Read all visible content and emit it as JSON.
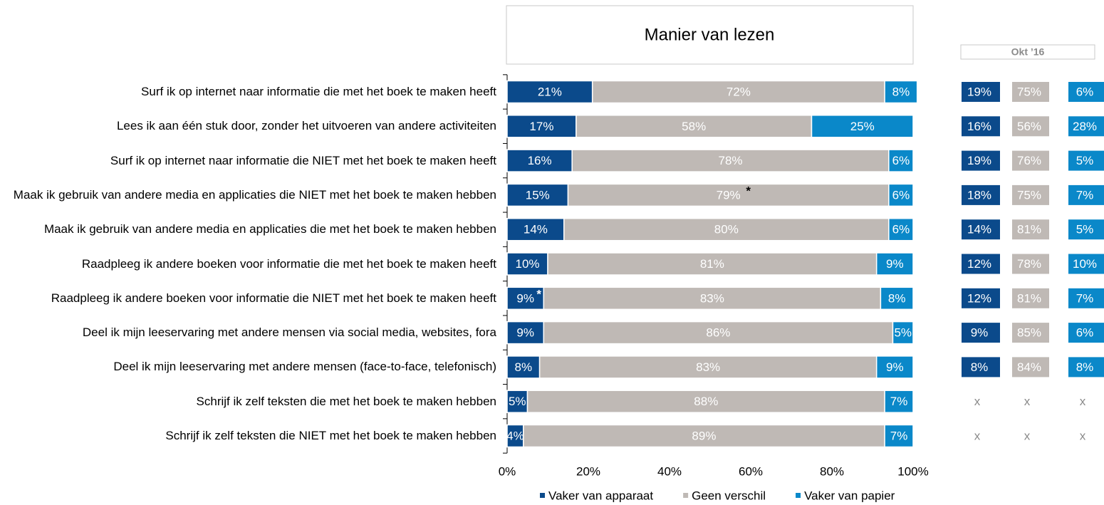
{
  "chart_data": {
    "type": "bar",
    "orientation": "horizontal",
    "stacked": true,
    "title": "Manier van lezen",
    "categories": [
      "Surf ik op internet naar informatie die met het boek te maken heeft",
      "Lees ik aan één stuk door, zonder het uitvoeren van andere activiteiten",
      "Surf ik op internet naar informatie die NIET met het boek te maken heeft",
      "Maak ik gebruik van andere media en applicaties die NIET met het boek te maken hebben",
      "Maak ik gebruik van andere media en applicaties die met het boek te maken hebben",
      "Raadpleeg ik andere boeken voor informatie die met het boek te maken heeft",
      "Raadpleeg ik andere boeken voor informatie die NIET met het boek te maken heeft",
      "Deel ik mijn leeservaring met andere mensen via social media, websites, fora",
      "Deel ik mijn leeservaring met andere mensen (face-to-face, telefonisch)",
      "Schrijf ik zelf teksten die met het boek te maken hebben",
      "Schrijf ik zelf teksten die NIET met het boek te maken hebben"
    ],
    "series": [
      {
        "name": "Vaker van apparaat",
        "color": "#0b4a8b",
        "values": [
          21,
          17,
          16,
          15,
          14,
          10,
          9,
          9,
          8,
          5,
          4
        ],
        "value_labels": [
          "21%",
          "17%",
          "16%",
          "15%",
          "14%",
          "10%",
          "9%",
          "9%",
          "8%",
          "5%",
          "4%"
        ]
      },
      {
        "name": "Geen verschil",
        "color": "#bfb9b5",
        "values": [
          72,
          58,
          78,
          79,
          80,
          81,
          83,
          86,
          83,
          88,
          89
        ],
        "value_labels": [
          "72%",
          "58%",
          "78%",
          "79%",
          "80%",
          "81%",
          "83%",
          "86%",
          "83%",
          "88%",
          "89%"
        ]
      },
      {
        "name": "Vaker van papier",
        "color": "#0a88c9",
        "values": [
          8,
          25,
          6,
          6,
          6,
          9,
          8,
          5,
          9,
          7,
          7
        ],
        "value_labels": [
          "8%",
          "25%",
          "6%",
          "6%",
          "6%",
          "9%",
          "8%",
          "5%",
          "9%",
          "7%",
          "7%"
        ]
      }
    ],
    "annotations": [
      {
        "text": "*",
        "category": 3,
        "series": 1
      },
      {
        "text": "*",
        "category": 6,
        "series": 0
      }
    ],
    "xlim": [
      0,
      100
    ],
    "xticks": [
      {
        "value": 0,
        "label": "0%"
      },
      {
        "value": 20,
        "label": "20%"
      },
      {
        "value": 40,
        "label": "40%"
      },
      {
        "value": 60,
        "label": "60%"
      },
      {
        "value": 80,
        "label": "80%"
      },
      {
        "value": 100,
        "label": "100%"
      }
    ],
    "grid": false,
    "legend": "bottom"
  },
  "comparison": {
    "title": "Okt ’16",
    "rows": [
      [
        "19%",
        "75%",
        "6%"
      ],
      [
        "16%",
        "56%",
        "28%"
      ],
      [
        "19%",
        "76%",
        "5%"
      ],
      [
        "18%",
        "75%",
        "7%"
      ],
      [
        "14%",
        "81%",
        "5%"
      ],
      [
        "12%",
        "78%",
        "10%"
      ],
      [
        "12%",
        "81%",
        "7%"
      ],
      [
        "9%",
        "85%",
        "6%"
      ],
      [
        "8%",
        "84%",
        "8%"
      ],
      [
        "x",
        "x",
        "x"
      ],
      [
        "x",
        "x",
        "x"
      ]
    ]
  }
}
